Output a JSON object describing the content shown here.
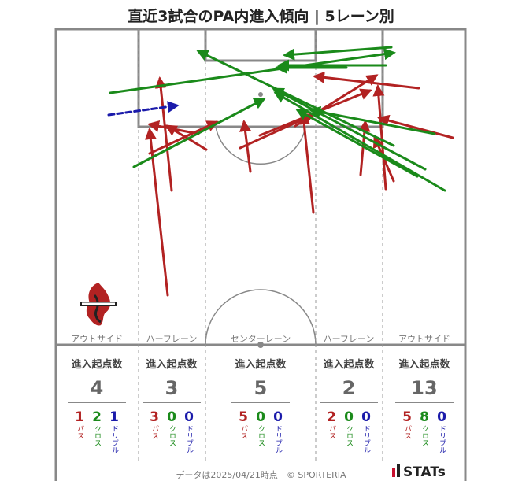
{
  "title": "直近3試合のPA内進入傾向 | 5レーン別",
  "lanes": [
    {
      "label": "アウトサイド",
      "stat_head": "進入起点数",
      "total": "4",
      "pass": "1",
      "cross": "2",
      "dribble": "1"
    },
    {
      "label": "ハーフレーン",
      "stat_head": "進入起点数",
      "total": "3",
      "pass": "3",
      "cross": "0",
      "dribble": "0"
    },
    {
      "label": "センターレーン",
      "stat_head": "進入起点数",
      "total": "5",
      "pass": "5",
      "cross": "0",
      "dribble": "0"
    },
    {
      "label": "ハーフレーン",
      "stat_head": "進入起点数",
      "total": "2",
      "pass": "2",
      "cross": "0",
      "dribble": "0"
    },
    {
      "label": "アウトサイド",
      "stat_head": "進入起点数",
      "total": "13",
      "pass": "5",
      "cross": "8",
      "dribble": "0"
    }
  ],
  "legend_labels": {
    "pass": "パス",
    "cross": "クロス",
    "dribble": "ドリブル"
  },
  "colors": {
    "pass": "#b22222",
    "cross": "#1a8a1a",
    "dribble": "#1a1aaa",
    "pitch_line": "#888888"
  },
  "footer": "データは2025/04/21時点　© SPORTERIA",
  "brand": "STATs",
  "crest_icon": "club-crest",
  "chart_data": {
    "type": "pitch-arrow-map",
    "title": "直近3試合のPA内進入傾向 | 5レーン別",
    "categories": [
      "アウトサイド",
      "ハーフレーン",
      "センターレーン",
      "ハーフレーン",
      "アウトサイド"
    ],
    "series": [
      {
        "name": "パス",
        "values": [
          1,
          3,
          5,
          2,
          5
        ]
      },
      {
        "name": "クロス",
        "values": [
          2,
          0,
          0,
          0,
          8
        ]
      },
      {
        "name": "ドリブル",
        "values": [
          1,
          0,
          0,
          0,
          0
        ]
      }
    ],
    "totals": [
      4,
      3,
      5,
      2,
      13
    ]
  }
}
